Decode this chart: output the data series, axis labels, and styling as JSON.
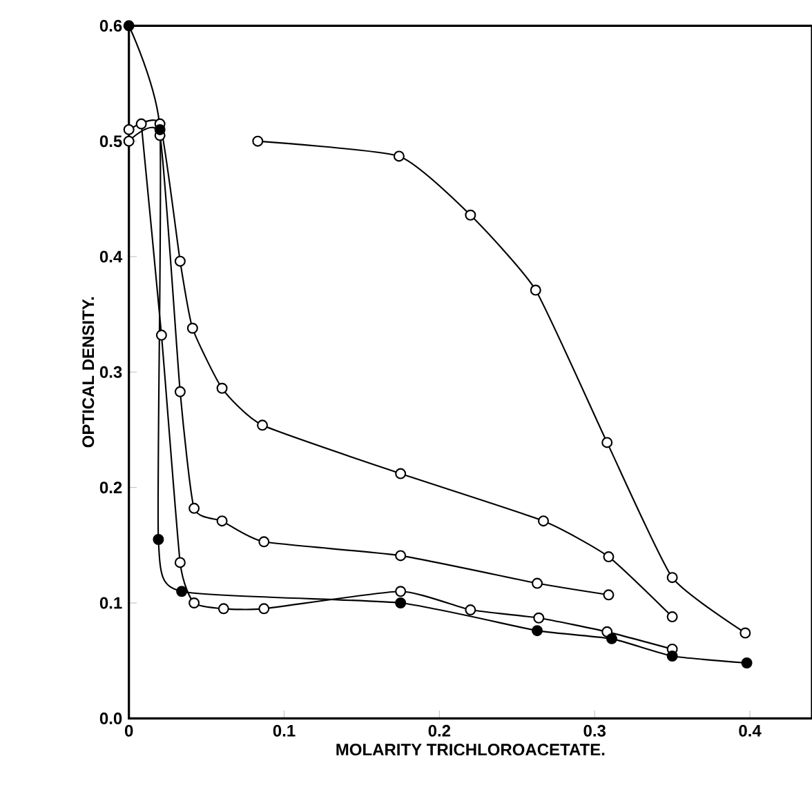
{
  "chart_data": {
    "type": "line",
    "xlabel": "MOLARITY TRICHLOROACETATE.",
    "ylabel": "OPTICAL DENSITY.",
    "xlim": [
      0,
      0.44
    ],
    "ylim": [
      0,
      0.6
    ],
    "xticks": [
      0,
      0.1,
      0.2,
      0.3,
      0.4
    ],
    "yticks": [
      {
        "value": 0,
        "label": "0.0"
      },
      0.1,
      0.2,
      0.3,
      0.4,
      0.5,
      0.6
    ],
    "marker": "circle",
    "line_style": "solid",
    "series": [
      {
        "color": "#000000",
        "x": [
          0.083,
          0.174,
          0.22,
          0.262,
          0.308,
          0.35,
          0.397
        ],
        "values": [
          0.5,
          0.487,
          0.436,
          0.371,
          0.239,
          0.122,
          0.074
        ]
      },
      {
        "color": "#000000",
        "x": [
          0,
          0.02,
          0.033,
          0.041,
          0.06,
          0.086,
          0.175,
          0.267,
          0.309,
          0.35
        ],
        "values": [
          0.51,
          0.515,
          0.396,
          0.338,
          0.286,
          0.254,
          0.212,
          0.171,
          0.14,
          0.088
        ]
      },
      {
        "color": "#000000",
        "x": [
          0,
          0.02,
          0.033,
          0.042,
          0.06,
          0.087,
          0.175,
          0.263,
          0.309
        ],
        "values": [
          0.5,
          0.505,
          0.283,
          0.182,
          0.171,
          0.153,
          0.141,
          0.117,
          0.107
        ]
      },
      {
        "color": "#000000",
        "x": [
          0.008,
          0.021,
          0.033,
          0.042,
          0.061,
          0.087,
          0.175,
          0.22,
          0.264,
          0.308,
          0.35
        ],
        "values": [
          0.515,
          0.332,
          0.135,
          0.1,
          0.095,
          0.095,
          0.11,
          0.094,
          0.087,
          0.075,
          0.06
        ]
      },
      {
        "color": "#000000",
        "x": [
          0,
          0.02,
          0.019,
          0.034,
          0.175,
          0.263,
          0.311,
          0.35,
          0.398
        ],
        "values": [
          0.6,
          0.51,
          0.155,
          0.11,
          0.1,
          0.076,
          0.069,
          0.054,
          0.048
        ]
      }
    ]
  }
}
